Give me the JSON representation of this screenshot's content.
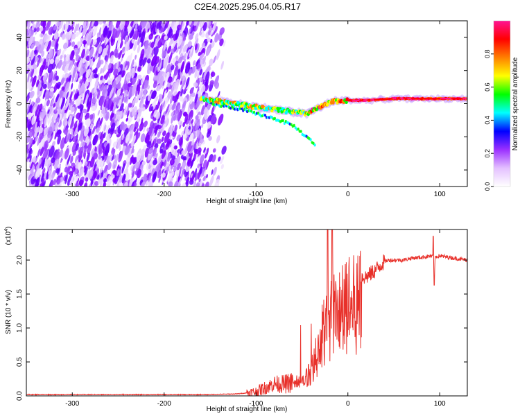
{
  "title": "C2E4.2025.295.04.05.R17",
  "chart_data": [
    {
      "type": "heatmap",
      "xlabel": "Height of straight line (km)",
      "ylabel": "Frequency (Hz)",
      "xlim": [
        -350,
        130
      ],
      "ylim": [
        -50,
        50
      ],
      "xticks": [
        -300,
        -200,
        -100,
        0,
        100
      ],
      "yticks": [
        -40,
        -20,
        0,
        20,
        40
      ],
      "noise_region_x": [
        -350,
        -140
      ],
      "signal_trace": {
        "x": [
          -160,
          -140,
          -120,
          -100,
          -80,
          -60,
          -45,
          -30,
          -15,
          0,
          20,
          50,
          80,
          100,
          130
        ],
        "y": [
          3,
          1.5,
          0,
          -2,
          -3.5,
          -5,
          -6,
          -2,
          1.5,
          2,
          2,
          3,
          3,
          3,
          3
        ]
      },
      "branch_trace": {
        "x": [
          -150,
          -120,
          -100,
          -80,
          -60,
          -45,
          -35
        ],
        "y": [
          0,
          -3,
          -6,
          -9,
          -13,
          -20,
          -25
        ]
      },
      "colorbar": {
        "label": "Normalized spectral amplitude",
        "range": [
          0,
          1
        ],
        "ticks": [
          "0.0",
          "0.2",
          "0.4",
          "0.6",
          "0.8"
        ],
        "colors": [
          "#ffffff",
          "#e4c0ff",
          "#9b30ff",
          "#0000ff",
          "#00ffff",
          "#00ff00",
          "#ffff00",
          "#ff8000",
          "#ff0000",
          "#ff1493"
        ]
      }
    },
    {
      "type": "line",
      "xlabel": "Height of straight line (km)",
      "ylabel": "SNR (10 * v/v)",
      "yscale_label": "(x10",
      "yscale_exp": "4",
      "yscale_close": ")",
      "xlim": [
        -350,
        130
      ],
      "ylim": [
        0,
        2.45
      ],
      "xticks": [
        -300,
        -200,
        -100,
        0,
        100
      ],
      "yticks": [
        "0.0",
        "0.5",
        "1.0",
        "1.5",
        "2.0"
      ],
      "color": "#e8302a",
      "series": [
        {
          "x": [
            -350,
            -300,
            -250,
            -200,
            -150,
            -120,
            -100,
            -90,
            -80,
            -70,
            -60,
            -55,
            -50,
            -45,
            -40,
            -35,
            -30,
            -27,
            -25,
            -22,
            -20,
            -17,
            -15,
            -10,
            -5,
            0,
            5,
            10,
            15,
            20,
            25,
            30,
            35,
            40,
            45,
            50,
            60,
            70,
            80,
            90,
            93,
            94,
            95,
            100,
            110,
            120,
            130
          ],
          "y": [
            0.02,
            0.02,
            0.02,
            0.02,
            0.02,
            0.03,
            0.06,
            0.12,
            0.18,
            0.17,
            0.2,
            0.25,
            0.22,
            0.35,
            0.45,
            0.7,
            0.8,
            1.3,
            1.2,
            1.4,
            1.35,
            1.5,
            1.5,
            1.5,
            1.55,
            1.6,
            1.65,
            1.7,
            1.75,
            1.75,
            1.8,
            1.85,
            1.92,
            1.98,
            2.0,
            2.0,
            2.0,
            2.03,
            2.04,
            2.06,
            2.05,
            1.63,
            2.05,
            2.06,
            2.04,
            2.02,
            2.0
          ]
        }
      ]
    }
  ]
}
